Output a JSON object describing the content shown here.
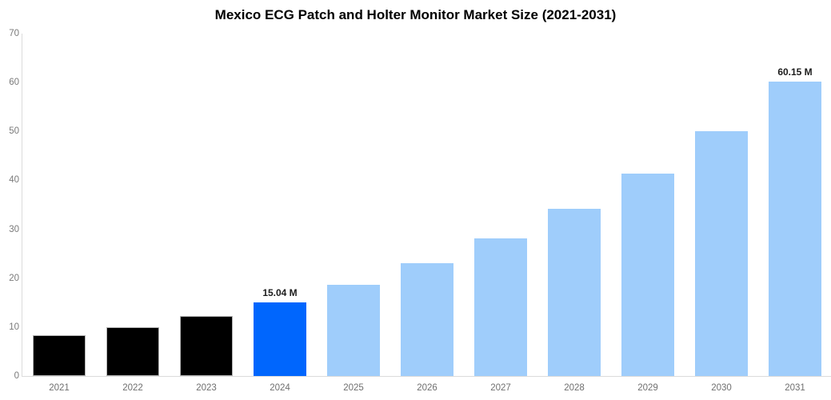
{
  "chart_data": {
    "type": "bar",
    "title": "Mexico ECG Patch and Holter Monitor Market Size (2021-2031)",
    "categories": [
      "2021",
      "2022",
      "2023",
      "2024",
      "2025",
      "2026",
      "2027",
      "2028",
      "2029",
      "2030",
      "2031"
    ],
    "values": [
      8.4,
      10.0,
      12.2,
      15.04,
      18.6,
      23.0,
      28.1,
      34.2,
      41.3,
      50.0,
      60.15
    ],
    "unit": "M",
    "xlabel": "",
    "ylabel": "",
    "ylim": [
      0,
      70
    ],
    "yticks": [
      0,
      10,
      20,
      30,
      40,
      50,
      60,
      70
    ],
    "grid": false,
    "legend_position": "none",
    "bar_colors": [
      "#000000",
      "#000000",
      "#000000",
      "#0066fd",
      "#9fcdfb",
      "#9fcdfb",
      "#9fcdfb",
      "#9fcdfb",
      "#9fcdfb",
      "#9fcdfb",
      "#9fcdfb"
    ],
    "bar_roles": [
      "historical",
      "historical",
      "historical",
      "highlight",
      "forecast",
      "forecast",
      "forecast",
      "forecast",
      "forecast",
      "forecast",
      "forecast"
    ],
    "annotations": [
      {
        "category": "2024",
        "label": "15.04 M"
      },
      {
        "category": "2031",
        "label": "60.15 M"
      }
    ]
  },
  "colors": {
    "historical_bar": "#000000",
    "highlight_bar": "#0066fd",
    "forecast_bar": "#9fcdfb",
    "axis_line": "#dbdbdb",
    "y_tick_text": "#7a7a7a",
    "x_tick_text": "#6f6f6f",
    "title_text": "#000000",
    "annotation_text": "#1c1c1c",
    "background": "#ffffff"
  }
}
